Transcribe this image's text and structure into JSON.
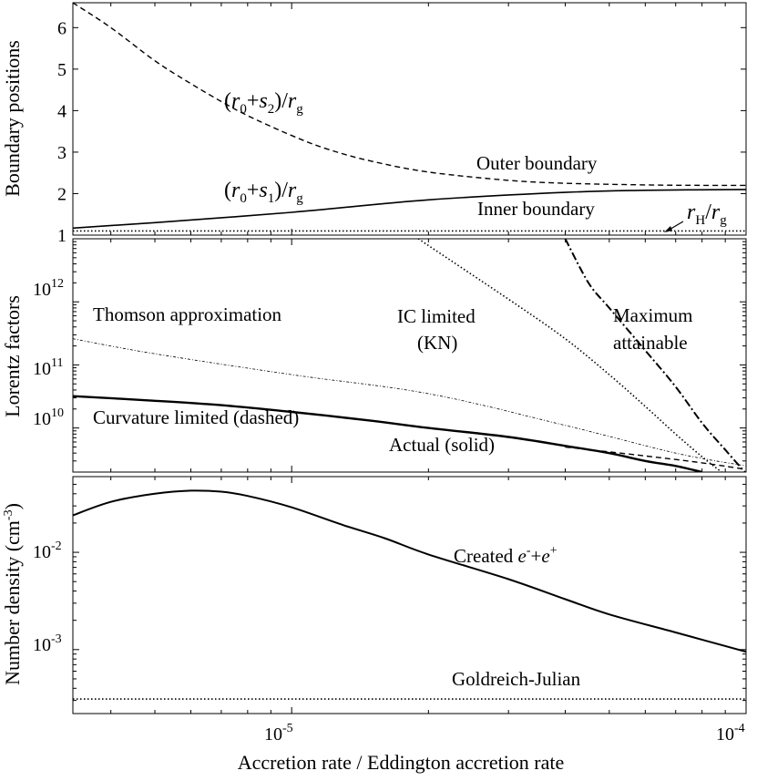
{
  "chart_data": [
    {
      "type": "line",
      "panel": "top",
      "ylabel": "Boundary positions",
      "ylim": [
        1,
        6.6
      ],
      "yticks": [
        "1",
        "2",
        "3",
        "4",
        "5",
        "6"
      ],
      "ytick_values": [
        1,
        2,
        3,
        4,
        5,
        6
      ],
      "series": [
        {
          "name": "Outer boundary",
          "style": "dashed",
          "x": [
            3.3e-06,
            4e-06,
            5e-06,
            6e-06,
            7e-06,
            8e-06,
            1e-05,
            1.2e-05,
            1.5e-05,
            2e-05,
            3e-05,
            4e-05,
            6e-05,
            8e-05,
            0.0001
          ],
          "y": [
            6.6,
            6.0,
            5.2,
            4.65,
            4.22,
            3.88,
            3.4,
            3.07,
            2.78,
            2.52,
            2.32,
            2.25,
            2.21,
            2.2,
            2.2
          ]
        },
        {
          "name": "Inner boundary",
          "style": "solid",
          "x": [
            3.3e-06,
            5e-06,
            1e-05,
            2e-05,
            4e-05,
            6e-05,
            0.0001
          ],
          "y": [
            1.17,
            1.3,
            1.55,
            1.85,
            2.03,
            2.08,
            2.1
          ]
        },
        {
          "name": "r_H/r_g",
          "style": "dotted",
          "x": [
            3.3e-06,
            0.0001
          ],
          "y": [
            1.1,
            1.1
          ]
        }
      ],
      "annotations": {
        "outer_formula": {
          "open": "(",
          "r": "r",
          "r_sub": "0",
          "plus": "+",
          "s": "s",
          "s_sub": "2",
          "close": ")/",
          "rg": "r",
          "rg_sub": "g"
        },
        "inner_formula": {
          "open": "(",
          "r": "r",
          "r_sub": "0",
          "plus": "+",
          "s": "s",
          "s_sub": "1",
          "close": ")/",
          "rg": "r",
          "rg_sub": "g"
        },
        "outer_label": "Outer boundary",
        "inner_label": "Inner boundary",
        "horizon_formula": {
          "r": "r",
          "r_sub": "H",
          "slash": "/",
          "rg": "r",
          "rg_sub": "g"
        }
      }
    },
    {
      "type": "line",
      "panel": "middle",
      "ylabel": "Lorentz factors",
      "yscale": "log",
      "ylim": [
        2000000000.0,
        10000000000000.0
      ],
      "yticks": [
        {
          "base": "10",
          "exp": "10",
          "value": 10000000000.0
        },
        {
          "base": "10",
          "exp": "11",
          "value": 100000000000.0
        },
        {
          "base": "10",
          "exp": "12",
          "value": 1000000000000.0
        }
      ],
      "series": [
        {
          "name": "Thomson approximation",
          "style": "thin-dotdash",
          "x": [
            3.3e-06,
            5e-06,
            1e-05,
            2e-05,
            4e-05,
            7e-05,
            0.0001
          ],
          "y": [
            260000000000.0,
            150000000000.0,
            70000000000.0,
            35000000000.0,
            11000000000.0,
            4000000000.0,
            2500000000.0
          ]
        },
        {
          "name": "IC limited (KN)",
          "style": "dotted",
          "x": [
            1.9e-05,
            3e-05,
            4e-05,
            5e-05,
            6e-05,
            7e-05,
            8e-05,
            9e-05
          ],
          "y": [
            10000000000000.0,
            1100000000000.0,
            260000000000.0,
            70000000000.0,
            22000000000.0,
            8000000000.0,
            3500000000.0,
            1800000000.0
          ]
        },
        {
          "name": "Maximum attainable",
          "style": "dashdot",
          "x": [
            4e-05,
            4.5e-05,
            5e-05,
            6e-05,
            7e-05,
            8e-05,
            9e-05,
            0.0001
          ],
          "y": [
            10000000000000.0,
            2000000000000.0,
            800000000000.0,
            170000000000.0,
            45000000000.0,
            12000000000.0,
            4500000000.0,
            1900000000.0
          ]
        },
        {
          "name": "Curvature limited (dashed)",
          "style": "dashed",
          "x": [
            4e-05,
            6e-05,
            8e-05,
            0.0001
          ],
          "y": [
            5000000000.0,
            3600000000.0,
            2800000000.0,
            2200000000.0
          ]
        },
        {
          "name": "Actual (solid)",
          "style": "solid",
          "x": [
            3.3e-06,
            5e-06,
            7e-06,
            1e-05,
            1.5e-05,
            2e-05,
            3e-05,
            4e-05,
            5e-05,
            6e-05,
            7e-05,
            8e-05
          ],
          "y": [
            32000000000.0,
            27000000000.0,
            23000000000.0,
            18000000000.0,
            13000000000.0,
            10000000000.0,
            7200000000.0,
            5200000000.0,
            4000000000.0,
            3000000000.0,
            2500000000.0,
            2000000000.0
          ]
        }
      ],
      "annotations": {
        "thomson": "Thomson approximation",
        "ic_line1": "IC limited",
        "ic_line2": "(KN)",
        "max_line1": "Maximum",
        "max_line2": "attainable",
        "curvature": "Curvature limited (dashed)",
        "actual": "Actual (solid)"
      }
    },
    {
      "type": "line",
      "panel": "bottom",
      "xscale": "log",
      "yscale": "log",
      "ylabel": {
        "text": "Number density (cm",
        "exp": "-3",
        "close": ")"
      },
      "xlabel": "Accretion rate / Eddington accretion rate",
      "xlim": [
        3.3e-06,
        0.0001
      ],
      "ylim": [
        0.00022,
        0.06
      ],
      "xticks": [
        {
          "base": "10",
          "exp": "-5",
          "value": 1e-05
        },
        {
          "base": "10",
          "exp": "-4",
          "value": 0.0001
        }
      ],
      "yticks": [
        {
          "base": "10",
          "exp": "-3",
          "value": 0.001
        },
        {
          "base": "10",
          "exp": "-2",
          "value": 0.01
        }
      ],
      "series": [
        {
          "name": "Created e-+e+",
          "style": "solid",
          "x": [
            3.3e-06,
            4e-06,
            5e-06,
            6e-06,
            7e-06,
            8e-06,
            1e-05,
            1.3e-05,
            1.6e-05,
            2e-05,
            3e-05,
            4e-05,
            5e-05,
            7e-05,
            0.0001
          ],
          "y": [
            0.024,
            0.033,
            0.04,
            0.043,
            0.042,
            0.038,
            0.029,
            0.019,
            0.014,
            0.0095,
            0.0053,
            0.0033,
            0.0023,
            0.0015,
            0.00095
          ]
        },
        {
          "name": "Goldreich-Julian",
          "style": "dotted",
          "x": [
            3.3e-06,
            0.0001
          ],
          "y": [
            0.00031,
            0.00031
          ]
        }
      ],
      "annotations": {
        "created": {
          "text": "Created ",
          "e1": "e",
          "sup1": "-",
          "plus": "+",
          "e2": "e",
          "sup2": "+"
        },
        "gj": "Goldreich-Julian"
      }
    }
  ]
}
